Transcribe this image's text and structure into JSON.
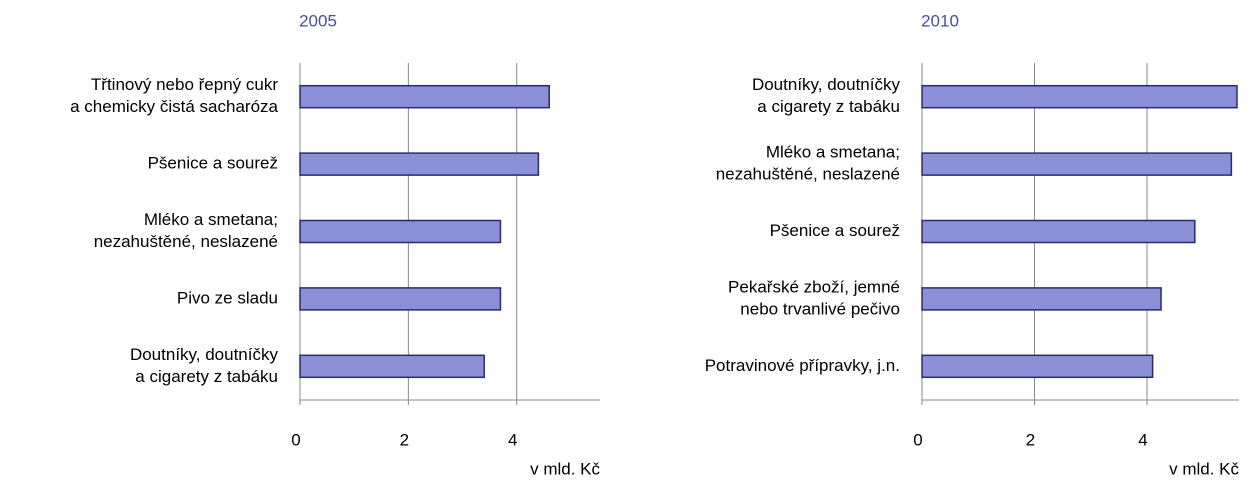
{
  "chart_data": [
    {
      "type": "barh",
      "title": "2005",
      "xlabel": "v mld. Kč",
      "categories": [
        [
          "Třtinový nebo řepný cukr",
          "a chemicky čistá sacharóza"
        ],
        [
          "Pšenice a sourež"
        ],
        [
          "Mléko a smetana;",
          "nezahuštěné, neslazené"
        ],
        [
          "Pivo ze sladu"
        ],
        [
          "Doutníky, doutníčky",
          "a cigarety z tabáku"
        ]
      ],
      "values": [
        4.6,
        4.4,
        3.7,
        3.7,
        3.4
      ],
      "color": "#8b8fd6",
      "edgecolor": "#2b2b70",
      "xlim": [
        0,
        5.5
      ],
      "xticks": [
        0,
        2,
        4
      ],
      "grid": true
    },
    {
      "type": "barh",
      "title": "2010",
      "xlabel": "v mld. Kč",
      "categories": [
        [
          "Doutníky, doutníčky",
          "a cigarety z tabáku"
        ],
        [
          "Mléko a smetana;",
          "nezahuštěné, neslazené"
        ],
        [
          "Pšenice a sourež"
        ],
        [
          "Pekařské zboží, jemné",
          "nebo trvanlivé pečivo"
        ],
        [
          "Potravinové přípravky, j.n."
        ]
      ],
      "values": [
        5.6,
        5.5,
        4.85,
        4.25,
        4.1
      ],
      "color": "#8b8fd6",
      "edgecolor": "#2b2b70",
      "xlim": [
        0,
        5.6
      ],
      "xticks": [
        0,
        2,
        4
      ],
      "grid": true
    }
  ]
}
